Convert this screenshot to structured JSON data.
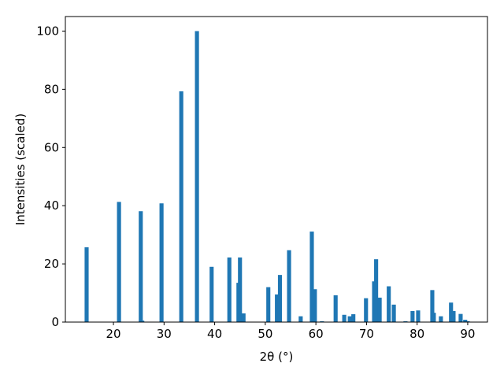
{
  "chart_data": {
    "type": "bar",
    "xlabel": "2θ (°)",
    "ylabel": "Intensities (scaled)",
    "color": "#1f77b4",
    "x": [
      14.7,
      21.1,
      25.4,
      25.7,
      29.5,
      33.4,
      36.5,
      39.4,
      42.9,
      44.7,
      45.0,
      45.7,
      50.6,
      52.3,
      52.9,
      54.7,
      57.0,
      59.2,
      59.8,
      61.2,
      63.9,
      65.6,
      66.7,
      67.4,
      69.9,
      71.5,
      71.9,
      72.6,
      74.4,
      75.4,
      77.7,
      79.1,
      80.2,
      83.0,
      83.3,
      84.7,
      86.7,
      87.2,
      88.6,
      89.5,
      90.0
    ],
    "values": [
      25.7,
      41.3,
      38.1,
      0.5,
      40.8,
      79.3,
      100,
      19,
      22.2,
      13.5,
      22.2,
      3,
      12,
      9.5,
      16.2,
      24.7,
      2,
      31.1,
      11.3,
      0.3,
      9.2,
      2.5,
      2,
      2.7,
      8.2,
      14,
      21.6,
      8.4,
      12.3,
      6,
      0.3,
      3.8,
      4,
      11,
      3.2,
      2,
      6.7,
      3.8,
      2.8,
      0.8,
      0.3
    ],
    "xlim": [
      10.5,
      93.9
    ],
    "ylim": [
      0,
      105
    ],
    "xticks": [
      20,
      30,
      40,
      50,
      60,
      70,
      80,
      90
    ],
    "yticks": [
      0,
      20,
      40,
      60,
      80,
      100
    ]
  }
}
